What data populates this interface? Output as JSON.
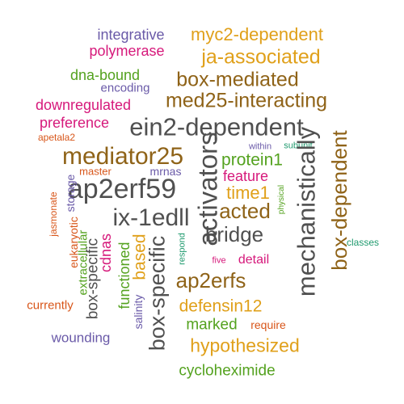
{
  "word_cloud": {
    "words": [
      {
        "text": "integrative",
        "color": "#6a5aa8"
      },
      {
        "text": "myc2-dependent",
        "color": "#e0a01a"
      },
      {
        "text": "polymerase",
        "color": "#d6197b"
      },
      {
        "text": "ja-associated",
        "color": "#e0a01a"
      },
      {
        "text": "dna-bound",
        "color": "#54a21f"
      },
      {
        "text": "encoding",
        "color": "#6a5aa8"
      },
      {
        "text": "box-mediated",
        "color": "#8f6318"
      },
      {
        "text": "downregulated",
        "color": "#d6197b"
      },
      {
        "text": "med25-interacting",
        "color": "#8f6318"
      },
      {
        "text": "preference",
        "color": "#d6197b"
      },
      {
        "text": "apetala2",
        "color": "#d8561a"
      },
      {
        "text": "ein2-dependent",
        "color": "#505050"
      },
      {
        "text": "within",
        "color": "#6a5aa8"
      },
      {
        "text": "subunit",
        "color": "#1f9a6e"
      },
      {
        "text": "mediator25",
        "color": "#8f6318"
      },
      {
        "text": "protein1",
        "color": "#54a21f"
      },
      {
        "text": "activators",
        "color": "#505050"
      },
      {
        "text": "mechanistically",
        "color": "#505050"
      },
      {
        "text": "box-dependent",
        "color": "#8f6318"
      },
      {
        "text": "master",
        "color": "#d8561a"
      },
      {
        "text": "mrnas",
        "color": "#6a5aa8"
      },
      {
        "text": "feature",
        "color": "#d6197b"
      },
      {
        "text": "ap2erf59",
        "color": "#505050"
      },
      {
        "text": "time1",
        "color": "#e0a01a"
      },
      {
        "text": "storage",
        "color": "#6a5aa8"
      },
      {
        "text": "physical",
        "color": "#54a21f"
      },
      {
        "text": "jasmonate",
        "color": "#d8561a"
      },
      {
        "text": "ix-1edll",
        "color": "#505050"
      },
      {
        "text": "acted",
        "color": "#8f6318"
      },
      {
        "text": "bridge",
        "color": "#505050"
      },
      {
        "text": "eukaryotic",
        "color": "#d8561a"
      },
      {
        "text": "extracellular",
        "color": "#54a21f"
      },
      {
        "text": "cdnas",
        "color": "#d6197b"
      },
      {
        "text": "based",
        "color": "#e0a01a"
      },
      {
        "text": "functioned",
        "color": "#54a21f"
      },
      {
        "text": "box-specific",
        "color": "#505050"
      },
      {
        "text": "respond",
        "color": "#1f9a6e"
      },
      {
        "text": "five",
        "color": "#d6197b"
      },
      {
        "text": "detail",
        "color": "#d6197b"
      },
      {
        "text": "classes",
        "color": "#1f9a6e"
      },
      {
        "text": "ap2erfs",
        "color": "#8f6318"
      },
      {
        "text": "box-specific",
        "color": "#505050"
      },
      {
        "text": "salinity",
        "color": "#6a5aa8"
      },
      {
        "text": "currently",
        "color": "#d8561a"
      },
      {
        "text": "defensin12",
        "color": "#e0a01a"
      },
      {
        "text": "marked",
        "color": "#54a21f"
      },
      {
        "text": "require",
        "color": "#d8561a"
      },
      {
        "text": "wounding",
        "color": "#6a5aa8"
      },
      {
        "text": "hypothesized",
        "color": "#e0a01a"
      },
      {
        "text": "cycloheximide",
        "color": "#54a21f"
      }
    ]
  }
}
